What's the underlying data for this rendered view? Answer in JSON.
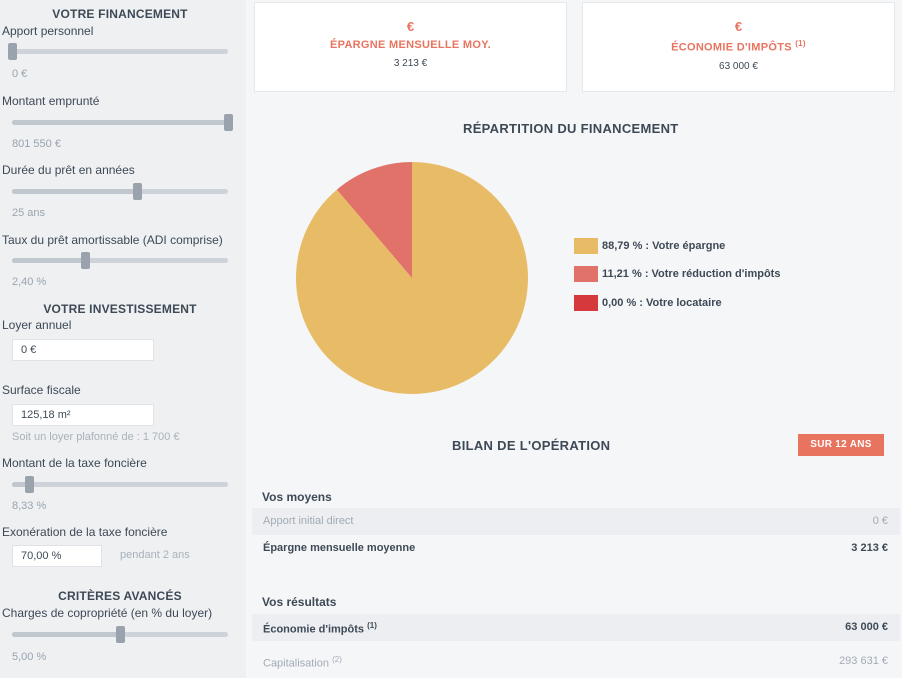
{
  "colors": {
    "accent": "#e8745f",
    "savings": "#e8bc67",
    "tax": "#e0726a",
    "tenant": "#d6393c"
  },
  "sidebar": {
    "financing_title": "VOTRE FINANCEMENT",
    "personal_contribution": {
      "label": "Apport personnel",
      "value": "0 €",
      "level": 0.0
    },
    "borrowed_amount": {
      "label": "Montant emprunté",
      "value": "801 550 €",
      "level": 1.0
    },
    "loan_duration": {
      "label": "Durée du prêt en années",
      "value": "25 ans",
      "level": 0.58
    },
    "loan_rate": {
      "label": "Taux du prêt amortissable (ADI comprise)",
      "value": "2,40 %",
      "level": 0.34
    },
    "investment_title": "VOTRE INVESTISSEMENT",
    "annual_rent": {
      "label": "Loyer annuel",
      "value": "0 €"
    },
    "tax_surface": {
      "label": "Surface fiscale",
      "value": "125,18 m²",
      "hint": "Soit un loyer plafonné de : 1 700 €"
    },
    "property_tax": {
      "label": "Montant de la taxe foncière",
      "value": "8,33 %",
      "level": 0.08
    },
    "property_tax_exemption": {
      "label": "Exonération de la taxe foncière",
      "value": "70,00 %",
      "hint": "pendant 2 ans"
    },
    "advanced_title": "CRITÈRES AVANCÉS",
    "condo_charges": {
      "label": "Charges de copropriété (en % du loyer)",
      "value": "5,00 %",
      "level": 0.5
    }
  },
  "kpis": [
    {
      "icon": "euro-icon",
      "symbol": "€",
      "label": "ÉPARGNE MENSUELLE MOY.",
      "sup": "",
      "value": "3 213 €"
    },
    {
      "icon": "euro-icon",
      "symbol": "€",
      "label": "ÉCONOMIE D'IMPÔTS",
      "sup": "(1)",
      "value": "63 000 €"
    }
  ],
  "chart_title": "RÉPARTITION DU FINANCEMENT",
  "chart_data": {
    "type": "pie",
    "title": "RÉPARTITION DU FINANCEMENT",
    "slices": [
      {
        "label": "Votre épargne",
        "value": 88.79,
        "display": "88,79 % :  Votre épargne",
        "color": "#e8bc67"
      },
      {
        "label": "Votre réduction d'impôts",
        "value": 11.21,
        "display": "11,21 % :  Votre réduction d'impôts",
        "color": "#e0726a"
      },
      {
        "label": "Votre locataire",
        "value": 0.0,
        "display": "0,00 % :  Votre locataire",
        "color": "#d6393c"
      }
    ],
    "legend_position": "right"
  },
  "bilan": {
    "title": "BILAN DE L'OPÉRATION",
    "badge": "SUR 12 ANS",
    "means_title": "Vos moyens",
    "means": [
      {
        "label": "Apport initial direct",
        "sup": "",
        "value": "0 €"
      },
      {
        "label": "Épargne mensuelle moyenne",
        "sup": "",
        "value": "3 213 €"
      }
    ],
    "results_title": "Vos résultats",
    "results": [
      {
        "label": "Économie d'impôts",
        "sup": "(1)",
        "value": "63 000 €"
      },
      {
        "label": "Capitalisation",
        "sup": "(2)",
        "value": "293 631 €"
      }
    ]
  }
}
